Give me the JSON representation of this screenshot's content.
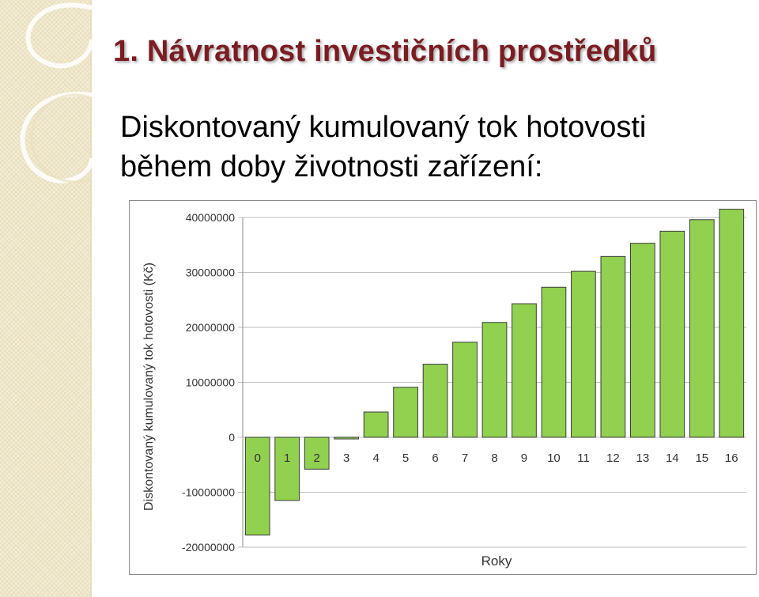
{
  "slide": {
    "title": "1. Návratnost investičních prostředků",
    "subtitle_line1": "Diskontovaný kumulovaný tok hotovosti",
    "subtitle_line2": "během doby životnosti zařízení:"
  },
  "colors": {
    "bar_fill": "#92d050",
    "bar_stroke": "#3b3b3b",
    "title": "#7a1d22",
    "grid": "#bfbfbf"
  },
  "chart_data": {
    "type": "bar",
    "xlabel": "Roky",
    "ylabel": "Diskontovaný kumulovaný tok hotovosti (Kč)",
    "categories": [
      "0",
      "1",
      "2",
      "3",
      "4",
      "5",
      "6",
      "7",
      "8",
      "9",
      "10",
      "11",
      "12",
      "13",
      "14",
      "15",
      "16"
    ],
    "values": [
      -17800000,
      -11500000,
      -5800000,
      -300000,
      4600000,
      9100000,
      13300000,
      17300000,
      20900000,
      24300000,
      27300000,
      30200000,
      32900000,
      35300000,
      37500000,
      39600000,
      41500000
    ],
    "yticks": [
      "40000000",
      "30000000",
      "20000000",
      "10000000",
      "0",
      "-10000000",
      "-20000000"
    ],
    "ylim": [
      -20000000,
      40000000
    ],
    "grid": true
  }
}
